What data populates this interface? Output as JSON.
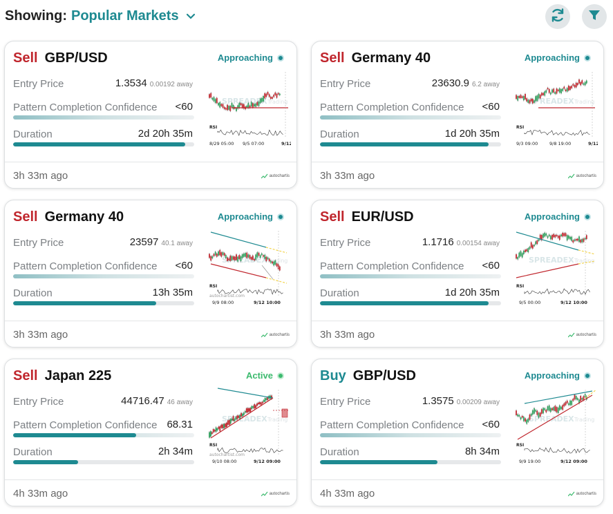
{
  "header": {
    "showing_label": "Showing:",
    "market_label": "Popular Markets",
    "icons": {
      "dropdown": "chevron-down-icon",
      "refresh": "refresh-icon",
      "filter": "filter-icon"
    }
  },
  "colors": {
    "sell": "#c0262d",
    "buy": "#1e8a91",
    "accent": "#1e8a91",
    "active": "#3cba6e"
  },
  "labels": {
    "entry": "Entry Price",
    "confidence": "Pattern Completion Confidence",
    "duration": "Duration"
  },
  "cards": [
    {
      "direction": "Sell",
      "symbol": "GBP/USD",
      "status": "Approaching",
      "entry_price": "1.3534",
      "away": "0.00192 away",
      "confidence": "<60",
      "duration": "2d 20h 35m",
      "duration_progress": 0.95,
      "ago": "3h 33m ago",
      "chart_labels": [
        "8/29 05:00",
        "9/5 07:00",
        "9/12"
      ]
    },
    {
      "direction": "Sell",
      "symbol": "Germany 40",
      "status": "Approaching",
      "entry_price": "23630.9",
      "away": "6.2 away",
      "confidence": "<60",
      "duration": "1d 20h 35m",
      "duration_progress": 0.93,
      "ago": "3h 33m ago",
      "chart_labels": [
        "9/3 09:00",
        "9/8 19:00",
        "9/12"
      ]
    },
    {
      "direction": "Sell",
      "symbol": "Germany 40",
      "status": "Approaching",
      "entry_price": "23597",
      "away": "40.1 away",
      "confidence": "<60",
      "duration": "13h 35m",
      "duration_progress": 0.79,
      "ago": "3h 33m ago",
      "chart_labels": [
        "9/9 08:00",
        "9/12 10:00"
      ]
    },
    {
      "direction": "Sell",
      "symbol": "EUR/USD",
      "status": "Approaching",
      "entry_price": "1.1716",
      "away": "0.00154 away",
      "confidence": "<60",
      "duration": "1d 20h 35m",
      "duration_progress": 0.93,
      "ago": "3h 33m ago",
      "chart_labels": [
        "9/5 00:00",
        "9/12 10:00"
      ]
    },
    {
      "direction": "Sell",
      "symbol": "Japan 225",
      "status": "Active",
      "entry_price": "44716.47",
      "away": "46 away",
      "confidence": "68.31",
      "confidence_progress": 0.68,
      "duration": "2h 34m",
      "duration_progress": 0.36,
      "ago": "4h 33m ago",
      "chart_labels": [
        "9/10 08:00",
        "9/12 09:00"
      ]
    },
    {
      "direction": "Buy",
      "symbol": "GBP/USD",
      "status": "Approaching",
      "entry_price": "1.3575",
      "away": "0.00209 away",
      "confidence": "<60",
      "duration": "8h 34m",
      "duration_progress": 0.65,
      "ago": "4h 33m ago",
      "chart_labels": [
        "9/9 19:00",
        "9/12 09:00"
      ]
    }
  ],
  "chart_common": {
    "rsi": "RSI",
    "watermark": "SPREADEX",
    "watermark_sub": "Trading",
    "source": "autochartist.com",
    "brand": "autochartis"
  }
}
